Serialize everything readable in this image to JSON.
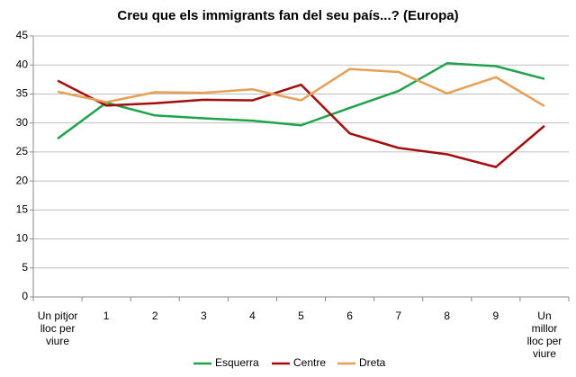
{
  "chart_data": {
    "type": "line",
    "title": "Creu que els immigrants fan del seu país...? (Europa)",
    "categories": [
      "Un pitjor\nlloc per\nviure",
      "1",
      "2",
      "3",
      "4",
      "5",
      "6",
      "7",
      "8",
      "9",
      "Un\nmillor\nlloc per\nviure"
    ],
    "series": [
      {
        "name": "Esquerra",
        "color": "#1fa34a",
        "values": [
          27.3,
          33.5,
          31.3,
          30.8,
          30.4,
          29.6,
          32.6,
          35.5,
          40.3,
          39.8,
          37.6
        ]
      },
      {
        "name": "Centre",
        "color": "#a30d0d",
        "values": [
          37.3,
          33.0,
          33.4,
          34.0,
          33.9,
          36.6,
          28.2,
          25.7,
          24.6,
          22.4,
          29.5
        ]
      },
      {
        "name": "Dreta",
        "color": "#e6a055",
        "values": [
          35.4,
          33.6,
          35.3,
          35.2,
          35.8,
          33.9,
          39.3,
          38.8,
          35.1,
          37.9,
          32.9
        ]
      }
    ],
    "ylim": [
      0,
      45
    ],
    "yticks": [
      0,
      5,
      10,
      15,
      20,
      25,
      30,
      35,
      40,
      45
    ],
    "grid": true,
    "legend": "bottom"
  }
}
